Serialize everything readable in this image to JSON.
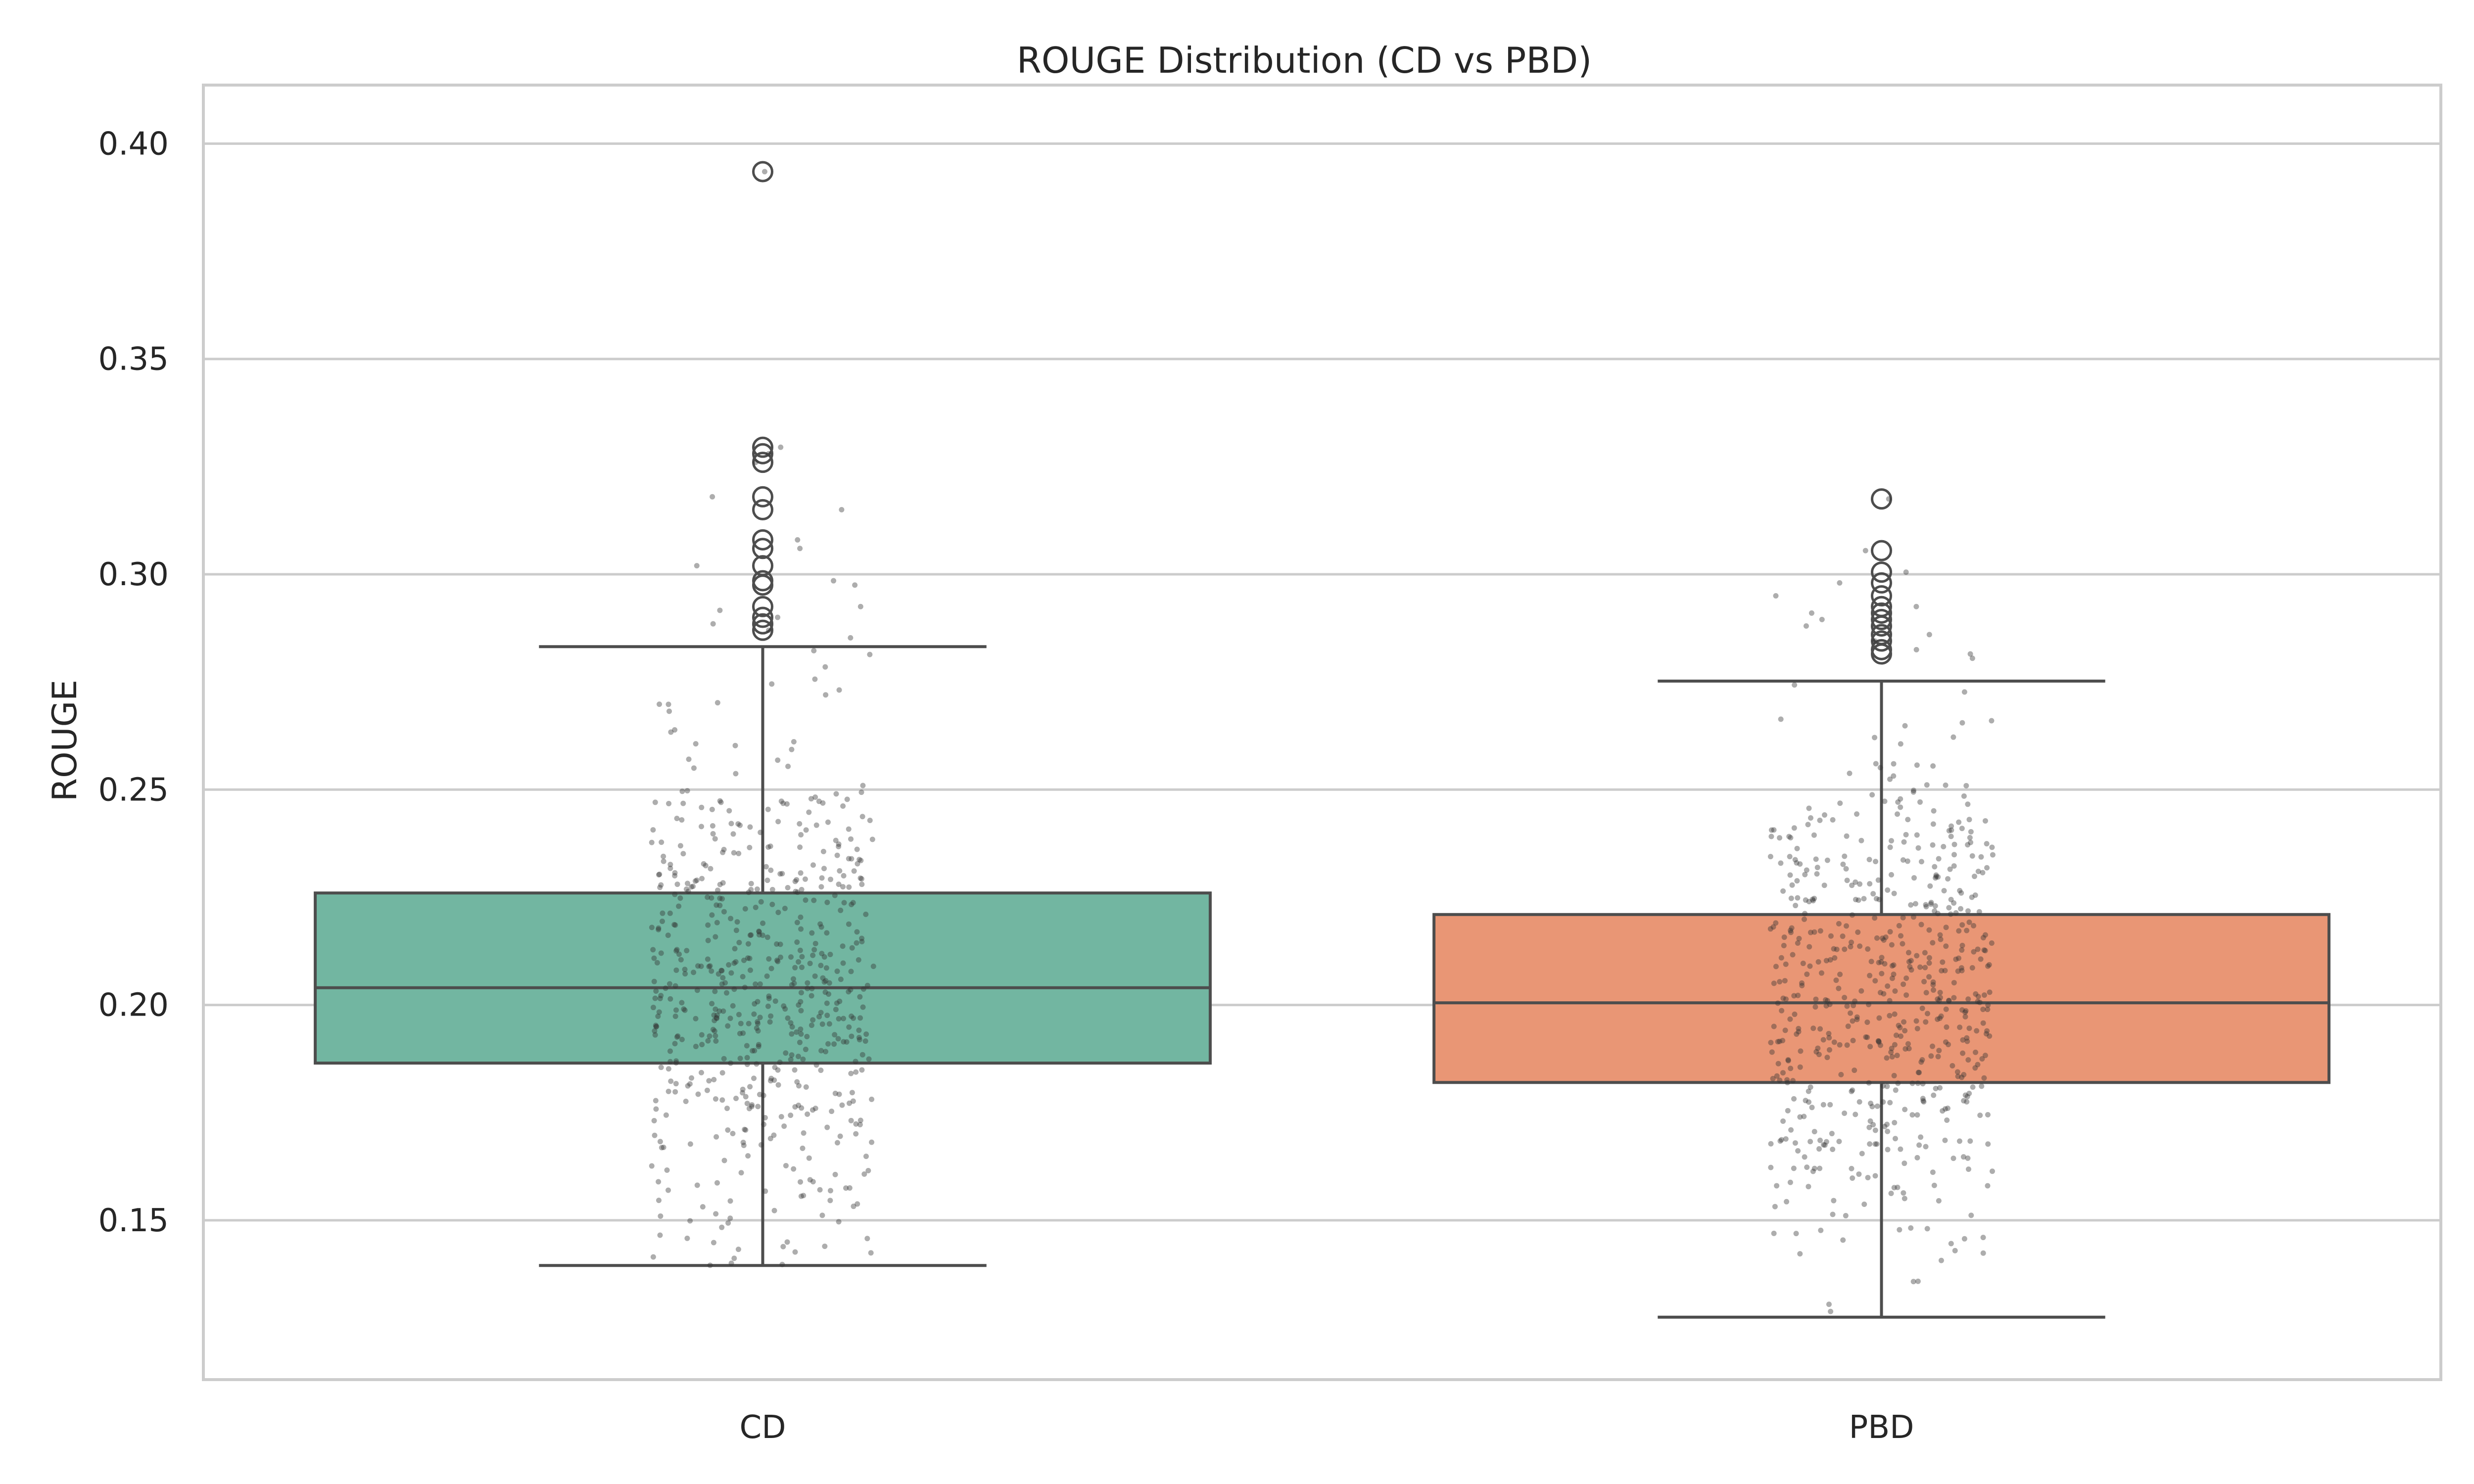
{
  "chart_data": {
    "type": "box",
    "title": "ROUGE Distribution (CD vs PBD)",
    "xlabel": "",
    "ylabel": "ROUGE",
    "ylim": [
      0.113,
      0.4136
    ],
    "yticks": [
      0.15,
      0.2,
      0.25,
      0.3,
      0.35,
      0.4
    ],
    "ytick_labels": [
      "0.15",
      "0.20",
      "0.25",
      "0.30",
      "0.35",
      "0.40"
    ],
    "grid": "horizontal",
    "categories": [
      "CD",
      "PBD"
    ],
    "boxes": [
      {
        "category": "CD",
        "color": "#72b6a1",
        "whisker_low": 0.1395,
        "q1": 0.1865,
        "median": 0.204,
        "q3": 0.226,
        "whisker_high": 0.2832,
        "outliers": [
          0.287,
          0.2885,
          0.29,
          0.2925,
          0.2975,
          0.2985,
          0.302,
          0.306,
          0.308,
          0.315,
          0.318,
          0.326,
          0.328,
          0.3295,
          0.3935
        ],
        "n_points": 600
      },
      {
        "category": "PBD",
        "color": "#e99675",
        "whisker_low": 0.1275,
        "q1": 0.182,
        "median": 0.2005,
        "q3": 0.221,
        "whisker_high": 0.2752,
        "outliers": [
          0.2815,
          0.2825,
          0.2845,
          0.286,
          0.288,
          0.2895,
          0.291,
          0.2925,
          0.295,
          0.298,
          0.3005,
          0.3055,
          0.3175
        ],
        "n_points": 600
      }
    ],
    "strip_color": "#333333"
  }
}
